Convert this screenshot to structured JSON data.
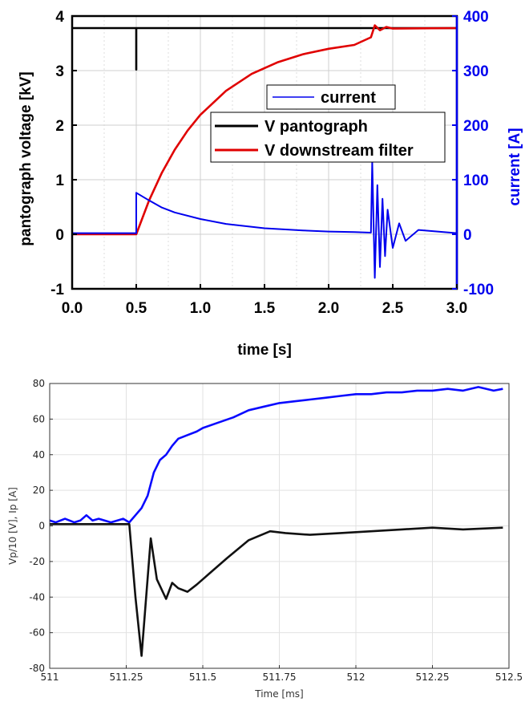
{
  "chart_data": [
    {
      "type": "line",
      "title": "",
      "xlabel": "time [s]",
      "ylabel_left": "pantograph voltage [kV]",
      "ylabel_right": "current [A]",
      "xlim": [
        0,
        3
      ],
      "ylim_left": [
        -1,
        4
      ],
      "ylim_right": [
        -100,
        400
      ],
      "x_ticks": [
        "0.0",
        "0.5",
        "1.0",
        "1.5",
        "2.0",
        "2.5",
        "3.0"
      ],
      "y_left_ticks": [
        "-1",
        "0",
        "1",
        "2",
        "3",
        "4"
      ],
      "y_right_ticks": [
        "-100",
        "0",
        "100",
        "200",
        "300",
        "400"
      ],
      "grid": true,
      "colors": {
        "left_axis": "#000000",
        "right_axis": "#0000ee"
      },
      "series": [
        {
          "name": "V pantograph",
          "axis": "left",
          "color": "#000000",
          "x": [
            0.0,
            0.5,
            0.5,
            0.5,
            1.0,
            1.5,
            2.0,
            2.33,
            2.5,
            3.0
          ],
          "y": [
            3.78,
            3.78,
            3.02,
            3.78,
            3.78,
            3.78,
            3.78,
            3.78,
            3.78,
            3.78
          ]
        },
        {
          "name": "V downstream filter",
          "axis": "left",
          "color": "#e00000",
          "x": [
            0.0,
            0.5,
            0.6,
            0.7,
            0.8,
            0.9,
            1.0,
            1.2,
            1.4,
            1.6,
            1.8,
            2.0,
            2.2,
            2.33,
            2.36,
            2.4,
            2.45,
            2.5,
            3.0
          ],
          "y": [
            0.0,
            0.0,
            0.62,
            1.13,
            1.55,
            1.9,
            2.19,
            2.63,
            2.94,
            3.15,
            3.3,
            3.4,
            3.47,
            3.61,
            3.83,
            3.74,
            3.8,
            3.77,
            3.78
          ]
        },
        {
          "name": "current",
          "axis": "right",
          "color": "#0000ee",
          "x": [
            0.0,
            0.5,
            0.5,
            0.6,
            0.7,
            0.8,
            1.0,
            1.2,
            1.5,
            1.8,
            2.0,
            2.2,
            2.33,
            2.34,
            2.36,
            2.38,
            2.4,
            2.42,
            2.44,
            2.46,
            2.5,
            2.55,
            2.6,
            2.7,
            3.0
          ],
          "y": [
            2,
            2,
            76,
            62,
            49,
            40,
            28,
            19,
            11,
            7,
            5,
            4,
            3,
            133,
            -80,
            90,
            -60,
            65,
            -40,
            45,
            -25,
            20,
            -12,
            8,
            2
          ]
        }
      ],
      "legend": [
        {
          "label": "current",
          "placement": "upper",
          "color": "#0000ee"
        },
        {
          "label": "V pantograph",
          "placement": "center-right",
          "color": "#000000"
        },
        {
          "label": "V downstream filter",
          "placement": "center-right",
          "color": "#e00000"
        }
      ]
    },
    {
      "type": "line",
      "title": "",
      "xlabel": "Time [ms]",
      "ylabel": "Vp/10 [V], Ip [A]",
      "xlim": [
        511,
        512.5
      ],
      "ylim": [
        -80,
        80
      ],
      "x_ticks": [
        "511",
        "511.25",
        "511.5",
        "511.75",
        "512",
        "512.25",
        "512.5"
      ],
      "y_ticks": [
        "-80",
        "-60",
        "-40",
        "-20",
        "0",
        "20",
        "40",
        "60",
        "80"
      ],
      "grid": true,
      "series": [
        {
          "color": "#0a0aff",
          "x": [
            511.0,
            511.02,
            511.05,
            511.08,
            511.1,
            511.12,
            511.14,
            511.16,
            511.2,
            511.24,
            511.26,
            511.28,
            511.3,
            511.32,
            511.34,
            511.36,
            511.38,
            511.4,
            511.42,
            511.45,
            511.48,
            511.5,
            511.55,
            511.6,
            511.65,
            511.7,
            511.75,
            511.8,
            511.85,
            511.9,
            511.95,
            512.0,
            512.05,
            512.1,
            512.15,
            512.2,
            512.25,
            512.3,
            512.35,
            512.4,
            512.45,
            512.48
          ],
          "y": [
            3,
            2,
            4,
            2,
            3,
            6,
            3,
            4,
            2,
            4,
            2,
            6,
            10,
            17,
            30,
            37,
            40,
            45,
            49,
            51,
            53,
            55,
            58,
            61,
            65,
            67,
            69,
            70,
            71,
            72,
            73,
            74,
            74,
            75,
            75,
            76,
            76,
            77,
            76,
            78,
            76,
            77
          ]
        },
        {
          "color": "#111111",
          "x": [
            511.0,
            511.1,
            511.2,
            511.26,
            511.28,
            511.3,
            511.33,
            511.35,
            511.38,
            511.4,
            511.42,
            511.45,
            511.48,
            511.52,
            511.58,
            511.65,
            511.72,
            511.77,
            511.85,
            511.95,
            512.05,
            512.15,
            512.25,
            512.35,
            512.48
          ],
          "y": [
            1,
            1,
            1,
            1,
            -40,
            -73,
            -7,
            -30,
            -41,
            -32,
            -35,
            -37,
            -33,
            -27,
            -18,
            -8,
            -3,
            -4,
            -5,
            -4,
            -3,
            -2,
            -1,
            -2,
            -1
          ]
        }
      ]
    }
  ]
}
